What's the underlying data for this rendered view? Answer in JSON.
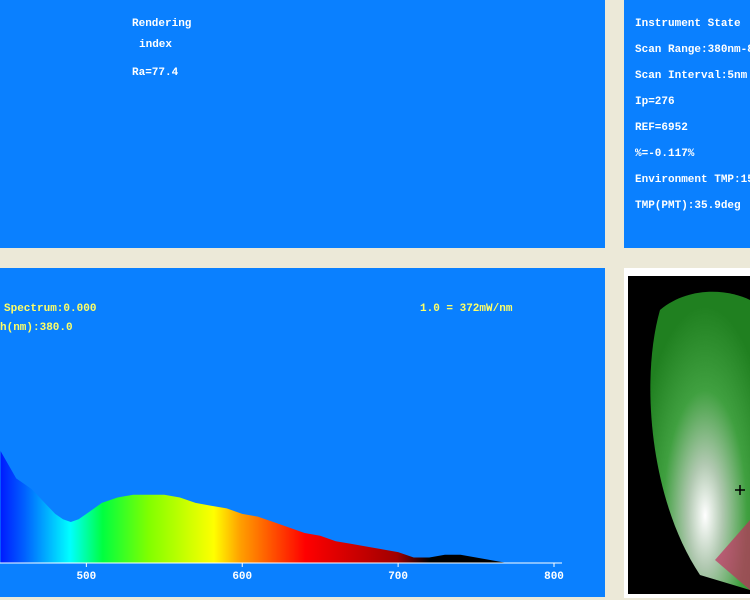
{
  "rendering_panel": {
    "line1": "Rendering",
    "line2": "index",
    "ra": "Ra=77.4"
  },
  "instrument_panel": {
    "title": "Instrument State",
    "lines": [
      "Scan Range:380nm-8",
      "Scan Interval:5nm",
      "Ip=276",
      "REF=6952",
      "%=-0.117%",
      "Environment TMP:15",
      "TMP(PMT):35.9deg"
    ]
  },
  "spectrum_panel": {
    "relative": "Spectrum:0.000",
    "wavelength": "h(nm):380.0",
    "scale": "1.0 = 372mW/nm"
  },
  "chart_data": {
    "type": "area",
    "x": [
      445,
      450,
      455,
      460,
      465,
      470,
      475,
      480,
      485,
      490,
      495,
      500,
      510,
      520,
      530,
      540,
      550,
      560,
      570,
      580,
      590,
      600,
      610,
      620,
      630,
      640,
      650,
      660,
      670,
      680,
      690,
      700,
      710,
      720,
      730,
      740,
      750,
      760,
      770,
      780,
      790,
      800
    ],
    "values": [
      0.41,
      0.36,
      0.31,
      0.29,
      0.27,
      0.24,
      0.21,
      0.18,
      0.16,
      0.15,
      0.16,
      0.18,
      0.22,
      0.24,
      0.25,
      0.25,
      0.25,
      0.24,
      0.22,
      0.21,
      0.2,
      0.18,
      0.17,
      0.15,
      0.13,
      0.11,
      0.1,
      0.08,
      0.07,
      0.06,
      0.05,
      0.04,
      0.02,
      0.02,
      0.03,
      0.03,
      0.02,
      0.01,
      0,
      0,
      0,
      0
    ],
    "xlim": [
      380,
      800
    ],
    "ylim": [
      0,
      1
    ],
    "xticks": [
      500,
      600,
      700,
      800
    ]
  }
}
